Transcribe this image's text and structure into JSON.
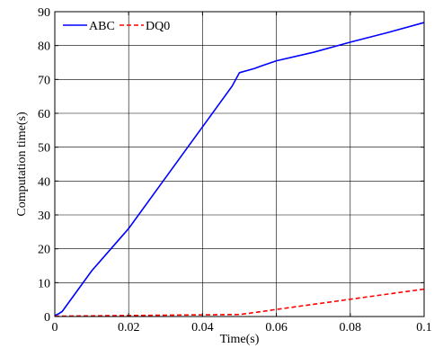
{
  "chart_data": {
    "type": "line",
    "xlabel": "Time(s)",
    "ylabel": "Computation time(s)",
    "xlim": [
      0,
      0.1
    ],
    "ylim": [
      0,
      90
    ],
    "xticks": [
      0,
      0.02,
      0.04,
      0.06,
      0.08,
      0.1
    ],
    "xtick_labels": [
      "0",
      "0.02",
      "0.04",
      "0.06",
      "0.08",
      "0.1"
    ],
    "yticks": [
      0,
      10,
      20,
      30,
      40,
      50,
      60,
      70,
      80,
      90
    ],
    "ytick_labels": [
      "0",
      "10",
      "20",
      "30",
      "40",
      "50",
      "60",
      "70",
      "80",
      "90"
    ],
    "grid": true,
    "legend_position": "top-left",
    "series": [
      {
        "name": "ABC",
        "color": "#0000ff",
        "dash": "solid",
        "x": [
          0,
          0.001,
          0.002,
          0.01,
          0.02,
          0.03,
          0.04,
          0.045,
          0.048,
          0.05,
          0.054,
          0.056,
          0.06,
          0.07,
          0.08,
          0.09,
          0.1
        ],
        "y": [
          0.3,
          0.8,
          1.5,
          13.5,
          26,
          41,
          56,
          63.5,
          68,
          72,
          73.2,
          74,
          75.5,
          78,
          81,
          83.8,
          86.8
        ]
      },
      {
        "name": "DQ0",
        "color": "#ff0000",
        "dash": "dashed",
        "x": [
          0,
          0.01,
          0.02,
          0.03,
          0.04,
          0.05,
          0.055,
          0.06,
          0.07,
          0.08,
          0.09,
          0.1
        ],
        "y": [
          0.1,
          0.2,
          0.3,
          0.4,
          0.5,
          0.6,
          1.3,
          2.1,
          3.6,
          5.1,
          6.6,
          8.1
        ]
      }
    ]
  }
}
